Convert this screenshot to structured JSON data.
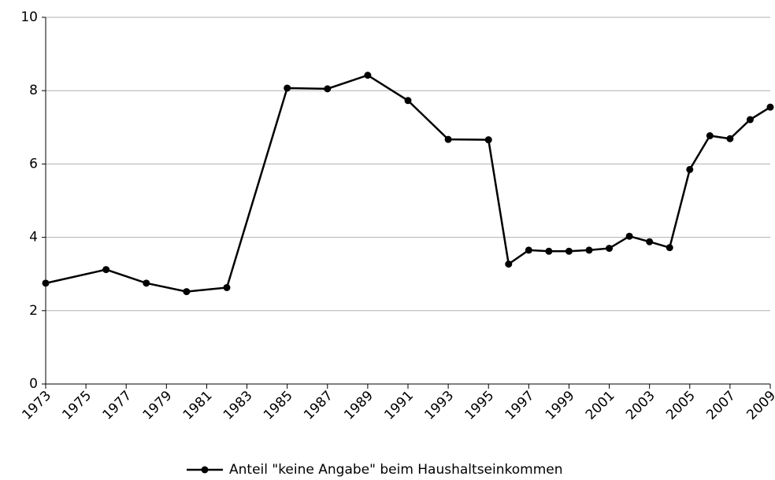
{
  "chart_data": {
    "type": "line",
    "x": [
      1973,
      1976,
      1978,
      1980,
      1982,
      1985,
      1987,
      1989,
      1991,
      1993,
      1995,
      1996,
      1997,
      1998,
      1999,
      2000,
      2001,
      2002,
      2003,
      2004,
      2005,
      2006,
      2007,
      2008,
      2009
    ],
    "series": [
      {
        "name": "Anteil \"keine Angabe\" beim Haushaltseinkommen",
        "color": "#000000",
        "values": [
          2.75,
          3.12,
          2.75,
          2.52,
          2.63,
          8.07,
          8.05,
          8.42,
          7.73,
          6.67,
          6.66,
          3.27,
          3.65,
          3.62,
          3.62,
          3.65,
          3.7,
          4.03,
          3.88,
          3.72,
          5.85,
          6.77,
          6.69,
          7.21,
          7.55
        ]
      }
    ],
    "xlim": [
      1973,
      2009
    ],
    "xticks": [
      1973,
      1975,
      1977,
      1979,
      1981,
      1983,
      1985,
      1987,
      1989,
      1991,
      1993,
      1995,
      1997,
      1999,
      2001,
      2003,
      2005,
      2007,
      2009
    ],
    "ylim": [
      0,
      10
    ],
    "yticks": [
      0,
      2,
      4,
      6,
      8,
      10
    ],
    "grid": true,
    "legend": "bottom"
  }
}
